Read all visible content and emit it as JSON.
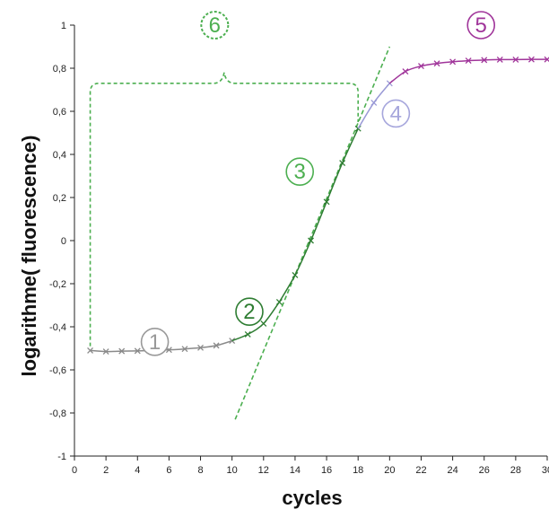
{
  "chart_data": {
    "type": "line",
    "title": "",
    "xlabel": "cycles",
    "ylabel": "logarithme( fluorescence)",
    "xlim": [
      0,
      30
    ],
    "ylim": [
      -1,
      1
    ],
    "x_ticks": [
      "0",
      "2",
      "4",
      "6",
      "8",
      "10",
      "12",
      "14",
      "16",
      "18",
      "20",
      "22",
      "24",
      "26",
      "28",
      "30"
    ],
    "y_ticks": [
      "-1",
      "-0,8",
      "-0,6",
      "-0,4",
      "-0,2",
      "0",
      "0,2",
      "0,4",
      "0,6",
      "0,8",
      "1"
    ],
    "grid": false,
    "legend": "none",
    "series": [
      {
        "color": "#8a8a8a",
        "points": [
          [
            1,
            -0.51
          ],
          [
            2,
            -0.515
          ],
          [
            3,
            -0.513
          ],
          [
            4,
            -0.512
          ],
          [
            5,
            -0.51
          ],
          [
            6,
            -0.507
          ],
          [
            7,
            -0.503
          ],
          [
            8,
            -0.497
          ],
          [
            9,
            -0.487
          ],
          [
            10,
            -0.465
          ]
        ]
      },
      {
        "color": "#2e7d32",
        "points": [
          [
            10,
            -0.465
          ],
          [
            11,
            -0.435
          ],
          [
            12,
            -0.385
          ],
          [
            13,
            -0.285
          ]
        ]
      },
      {
        "color": "#2e7d32",
        "points": [
          [
            13,
            -0.285
          ],
          [
            14,
            -0.16
          ],
          [
            15,
            0.0
          ],
          [
            16,
            0.18
          ],
          [
            17,
            0.36
          ],
          [
            18,
            0.52
          ]
        ]
      },
      {
        "color": "#9999d6",
        "points": [
          [
            18,
            0.52
          ],
          [
            19,
            0.64
          ],
          [
            20,
            0.73
          ]
        ]
      },
      {
        "color": "#a0359a",
        "points": [
          [
            20,
            0.73
          ],
          [
            21,
            0.785
          ],
          [
            22,
            0.81
          ],
          [
            23,
            0.822
          ],
          [
            24,
            0.83
          ],
          [
            25,
            0.835
          ],
          [
            26,
            0.838
          ],
          [
            27,
            0.84
          ],
          [
            28,
            0.84
          ],
          [
            29,
            0.841
          ],
          [
            30,
            0.841
          ]
        ]
      }
    ],
    "fit_line": {
      "color": "#4caf50",
      "from": [
        10.2,
        -0.83
      ],
      "to": [
        20.0,
        0.9
      ]
    },
    "baseline_bracket": {
      "color": "#4caf50",
      "x_start": 1,
      "x_end": 18,
      "y_top": 0.73,
      "y_bottom": -0.49
    },
    "phase_annotations": [
      {
        "text": "1",
        "color": "#999999",
        "x": 5.1,
        "y": -0.47
      },
      {
        "text": "2",
        "color": "#2e7d32",
        "x": 11.1,
        "y": -0.33
      },
      {
        "text": "3",
        "color": "#4caf50",
        "x": 14.3,
        "y": 0.32
      },
      {
        "text": "4",
        "color": "#a6a6dc",
        "x": 20.4,
        "y": 0.59
      },
      {
        "text": "5",
        "color": "#a0359a",
        "x": 25.8,
        "y": 1.0
      },
      {
        "text": "6",
        "color": "#4caf50",
        "x": 8.9,
        "y": 1.0
      }
    ]
  }
}
